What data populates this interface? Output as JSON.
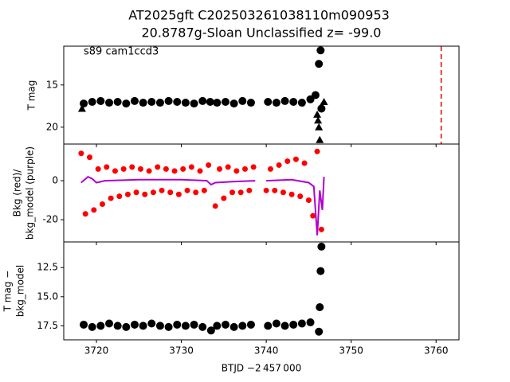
{
  "chart_data": [
    {
      "type": "scatter",
      "title": [
        "AT2025gft  C202503261038110m090953",
        "20.8787g-Sloan Unclassified z= -99.0"
      ],
      "annotation": "s89 cam1ccd3",
      "ylabel": [
        "T mag"
      ],
      "xlim": [
        3716.15,
        3762.7
      ],
      "ylim": [
        22.0,
        10.4
      ],
      "yticks": [
        15,
        20
      ],
      "series": [
        {
          "marker": "circle",
          "color": "#000000",
          "x": [
            3718.5,
            3719.5,
            3720.5,
            3721.5,
            3722.5,
            3723.5,
            3724.5,
            3725.5,
            3726.5,
            3727.5,
            3728.5,
            3729.5,
            3730.5,
            3731.5,
            3732.5,
            3733.4,
            3734.2,
            3735.2,
            3736.2,
            3737.2,
            3738.2,
            3740.2,
            3741.2,
            3742.2,
            3743.2,
            3744.2,
            3745.2,
            3745.8,
            3746.2,
            3746.4,
            3746.5
          ],
          "values": [
            17.2,
            17.0,
            16.9,
            17.1,
            17.0,
            17.2,
            16.9,
            17.1,
            17.0,
            17.1,
            16.9,
            17.0,
            17.1,
            17.2,
            16.9,
            17.0,
            17.1,
            17.0,
            17.2,
            16.9,
            17.1,
            17.0,
            17.1,
            16.9,
            17.0,
            17.1,
            16.7,
            16.2,
            12.5,
            10.9,
            17.8
          ]
        },
        {
          "marker": "triangle",
          "color": "#000000",
          "x": [
            3718.3,
            3746.0,
            3746.1,
            3746.2,
            3746.3,
            3746.5,
            3746.8
          ],
          "values": [
            17.8,
            18.5,
            19.2,
            20.0,
            21.5,
            17.5,
            17.0
          ]
        }
      ],
      "vlines": [
        {
          "x": 3760.6,
          "color": "#e00000",
          "dash": true
        }
      ]
    },
    {
      "type": "scatter",
      "ylabel": [
        "Bkg (red)/",
        "bkg_model (purple)"
      ],
      "xlim": [
        3716.15,
        3762.7
      ],
      "ylim": [
        -31.4,
        18.8
      ],
      "yticks": [
        -20,
        0
      ],
      "series": [
        {
          "marker": "circle",
          "color": "#ff0000",
          "x": [
            3718.2,
            3718.7,
            3719.2,
            3719.7,
            3720.2,
            3720.7,
            3721.2,
            3721.7,
            3722.2,
            3722.7,
            3723.2,
            3723.7,
            3724.2,
            3724.7,
            3725.2,
            3725.7,
            3726.2,
            3726.7,
            3727.2,
            3727.7,
            3728.2,
            3728.7,
            3729.2,
            3729.7,
            3730.2,
            3730.7,
            3731.2,
            3731.7,
            3732.2,
            3732.7,
            3733.2,
            3734.0,
            3734.5,
            3735.0,
            3735.5,
            3736.0,
            3736.5,
            3737.0,
            3737.5,
            3738.0,
            3738.5,
            3740.0,
            3740.5,
            3741.0,
            3741.5,
            3742.0,
            3742.5,
            3743.0,
            3743.5,
            3744.0,
            3744.5,
            3745.0,
            3745.5,
            3746.0,
            3746.5
          ],
          "values": [
            14,
            -17,
            12,
            -15,
            6,
            -12,
            7,
            -9,
            5,
            -8,
            6,
            -7,
            7,
            -6,
            6,
            -7,
            5,
            -6,
            7,
            -5,
            6,
            -6,
            5,
            -7,
            6,
            -5,
            7,
            -6,
            5,
            -5,
            8,
            -13,
            6,
            -9,
            7,
            -6,
            5,
            -6,
            6,
            -5,
            7,
            -5,
            6,
            -5,
            8,
            -6,
            10,
            -7,
            11,
            -8,
            9,
            -10,
            -18,
            15,
            -25
          ]
        },
        {
          "marker": "line",
          "color": "#b000d0",
          "x": [
            3718.2,
            3719.0,
            3719.5,
            3720.0,
            3721.0,
            3725.0,
            3730.0,
            3733.0,
            3733.5,
            3734.0,
            3736.0,
            3738.7,
            3739.3,
            3740.0,
            3743.0,
            3745.0,
            3745.6,
            3746.0,
            3746.3,
            3746.6,
            3746.8
          ],
          "values": [
            -1,
            2,
            1,
            -1,
            0,
            0.5,
            0.5,
            0,
            -2,
            -1,
            -0.5,
            0,
            null,
            0,
            0.5,
            -1,
            -3,
            -28,
            -5,
            -15,
            2
          ]
        }
      ]
    },
    {
      "type": "scatter",
      "ylabel": [
        "T mag −",
        "bkg_model"
      ],
      "xlabel": "BTJD −2 457 000",
      "xlim": [
        3716.15,
        3762.7
      ],
      "xticks": [
        3720,
        3730,
        3740,
        3750,
        3760
      ],
      "ylim": [
        18.7,
        10.3
      ],
      "yticks": [
        12.5,
        {
          "value": 15,
          "label": "15.0"
        },
        17.5
      ],
      "series": [
        {
          "marker": "circle",
          "color": "#000000",
          "x": [
            3718.5,
            3719.5,
            3720.5,
            3721.5,
            3722.5,
            3723.5,
            3724.5,
            3725.5,
            3726.5,
            3727.5,
            3728.5,
            3729.5,
            3730.5,
            3731.5,
            3732.5,
            3733.5,
            3734.2,
            3735.2,
            3736.2,
            3737.2,
            3738.2,
            3740.2,
            3741.2,
            3742.2,
            3743.2,
            3744.2,
            3745.2,
            3746.2,
            3746.3,
            3746.4,
            3746.5
          ],
          "values": [
            17.4,
            17.6,
            17.5,
            17.3,
            17.5,
            17.6,
            17.4,
            17.5,
            17.3,
            17.5,
            17.6,
            17.4,
            17.5,
            17.4,
            17.6,
            17.9,
            17.5,
            17.4,
            17.6,
            17.5,
            17.4,
            17.5,
            17.3,
            17.5,
            17.4,
            17.3,
            17.2,
            18.0,
            15.9,
            12.8,
            10.7
          ]
        }
      ]
    }
  ]
}
